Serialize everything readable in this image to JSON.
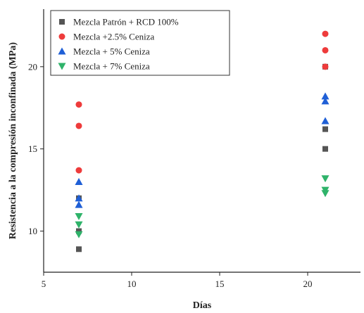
{
  "chart_data": {
    "type": "scatter",
    "xlabel": "Días",
    "ylabel": "Resistencia a la compresión inconfinada (MPa)",
    "xlim": [
      5,
      23
    ],
    "ylim": [
      7.5,
      23.5
    ],
    "x_ticks": [
      5,
      10,
      15,
      20
    ],
    "y_ticks": [
      10,
      15,
      20
    ],
    "grid": false,
    "legend_position": "top-left",
    "series": [
      {
        "name": "Mezcla Patrón + RCD 100%",
        "marker": "square",
        "color": "#555555",
        "points": [
          {
            "x": 7,
            "y": 8.9
          },
          {
            "x": 7,
            "y": 10.0
          },
          {
            "x": 7,
            "y": 12.0
          },
          {
            "x": 21,
            "y": 15.0
          },
          {
            "x": 21,
            "y": 16.2
          },
          {
            "x": 21,
            "y": 20.0
          }
        ]
      },
      {
        "name": "Mezcla +2.5% Ceniza",
        "marker": "circle",
        "color": "#ee3b3b",
        "points": [
          {
            "x": 7,
            "y": 13.7
          },
          {
            "x": 7,
            "y": 16.4
          },
          {
            "x": 7,
            "y": 17.7
          },
          {
            "x": 21,
            "y": 20.0
          },
          {
            "x": 21,
            "y": 21.0
          },
          {
            "x": 21,
            "y": 22.0
          }
        ]
      },
      {
        "name": "Mezcla + 5% Ceniza",
        "marker": "triangle-up",
        "color": "#1f5fd6",
        "points": [
          {
            "x": 7,
            "y": 11.6
          },
          {
            "x": 7,
            "y": 12.0
          },
          {
            "x": 7,
            "y": 13.0
          },
          {
            "x": 21,
            "y": 16.7
          },
          {
            "x": 21,
            "y": 17.9
          },
          {
            "x": 21,
            "y": 18.2
          }
        ]
      },
      {
        "name": "Mezcla + 7% Ceniza",
        "marker": "triangle-down",
        "color": "#2fb36a",
        "points": [
          {
            "x": 7,
            "y": 9.8
          },
          {
            "x": 7,
            "y": 10.4
          },
          {
            "x": 7,
            "y": 10.9
          },
          {
            "x": 21,
            "y": 12.3
          },
          {
            "x": 21,
            "y": 12.5
          },
          {
            "x": 21,
            "y": 13.2
          }
        ]
      }
    ]
  }
}
